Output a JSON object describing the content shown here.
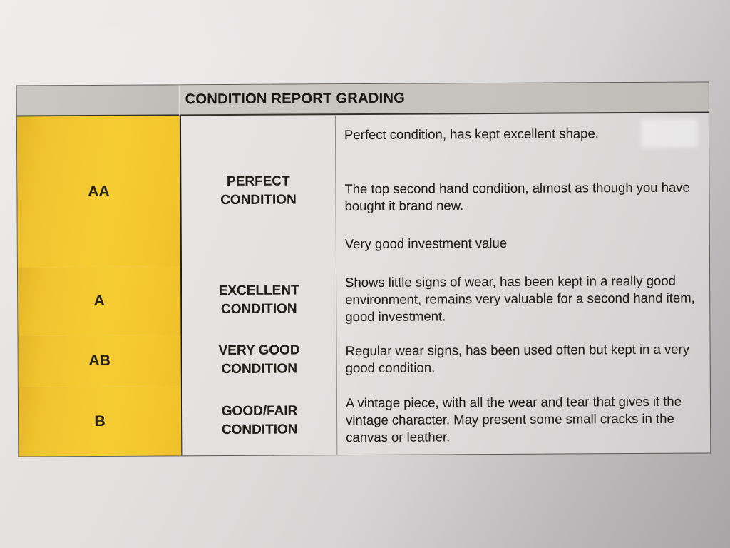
{
  "header": {
    "title": "CONDITION REPORT GRADING"
  },
  "rows": [
    {
      "grade": "AA",
      "label": [
        "PERFECT",
        "CONDITION"
      ],
      "paragraphs": [
        "Perfect condition, has kept excellent shape.",
        "The top second hand condition, almost as though you have bought it brand new.",
        "Very good investment value"
      ]
    },
    {
      "grade": "A",
      "label": [
        "EXCELLENT",
        "CONDITION"
      ],
      "paragraphs": [
        "Shows little signs of wear, has been kept in a really good environment, remains very valuable for a second hand item, good investment."
      ]
    },
    {
      "grade": "AB",
      "label": [
        "VERY GOOD",
        "CONDITION"
      ],
      "paragraphs": [
        "Regular wear signs, has been used often but kept in a very good condition."
      ]
    },
    {
      "grade": "B",
      "label": [
        "GOOD/FAIR",
        "CONDITION"
      ],
      "paragraphs": [
        "A vintage piece, with all the wear and tear that gives it the vintage character. May present some small cracks in the canvas or leather."
      ]
    }
  ],
  "colors": {
    "grade_column_yellow": "#f2c72e",
    "header_gray": "#c6c2be",
    "paper_light": "#ebe9e7",
    "paper_dark": "#a8a5a7",
    "text": "#1f1d1a"
  }
}
